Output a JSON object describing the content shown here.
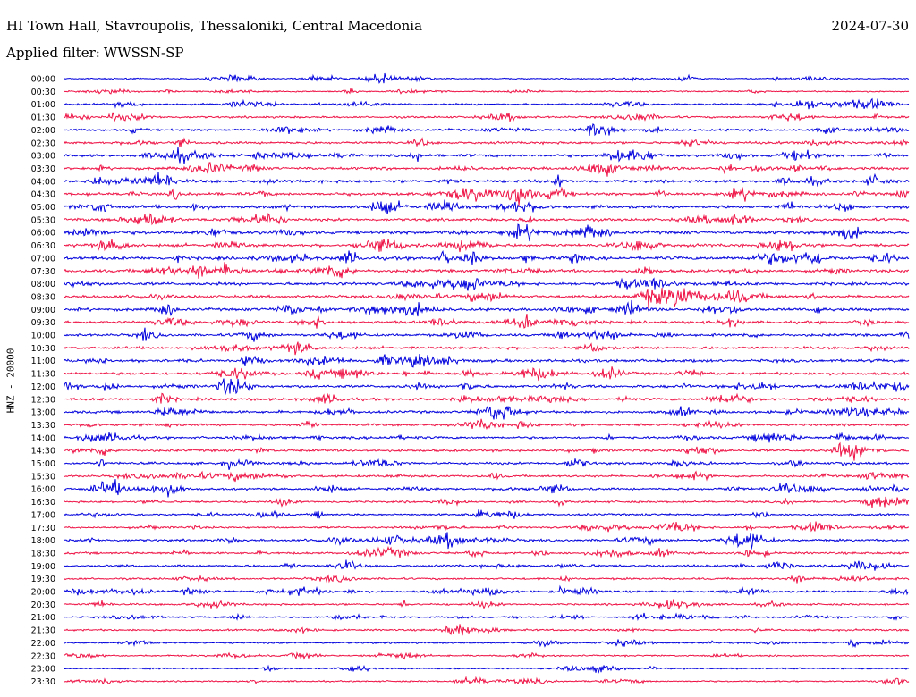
{
  "header": {
    "title": "HI Town Hall, Stavroupolis, Thessaloniki, Central Macedonia",
    "date": "2024-07-30",
    "filter_label": "Applied filter:",
    "filter_value": "WWSSN-SP"
  },
  "chart_data": {
    "type": "line",
    "subtype": "helicorder",
    "ylabel": "HNZ - 20000",
    "colors": [
      "#0000dd",
      "#ee1144"
    ],
    "trace_labels": [
      "00:00",
      "00:30",
      "01:00",
      "01:30",
      "02:00",
      "02:30",
      "03:00",
      "03:30",
      "04:00",
      "04:30",
      "05:00",
      "05:30",
      "06:00",
      "06:30",
      "07:00",
      "07:30",
      "08:00",
      "08:30",
      "09:00",
      "09:30",
      "10:00",
      "10:30",
      "11:00",
      "11:30",
      "12:00",
      "12:30",
      "13:00",
      "13:30",
      "14:00",
      "14:30",
      "15:00",
      "15:30",
      "16:00",
      "16:30",
      "17:00",
      "17:30",
      "18:00",
      "18:30",
      "19:00",
      "19:30",
      "20:00",
      "20:30",
      "21:00",
      "21:30",
      "22:00",
      "22:30",
      "23:00",
      "23:30"
    ],
    "trace_amplitude": [
      0.15,
      0.18,
      0.3,
      0.35,
      0.4,
      0.45,
      0.55,
      0.5,
      0.6,
      0.6,
      0.65,
      0.55,
      0.65,
      0.6,
      0.7,
      0.6,
      0.6,
      0.55,
      0.55,
      0.55,
      0.5,
      0.5,
      0.6,
      0.55,
      0.55,
      0.5,
      0.5,
      0.45,
      0.45,
      0.45,
      0.45,
      0.4,
      0.4,
      0.35,
      0.35,
      0.35,
      0.45,
      0.4,
      0.4,
      0.35,
      0.35,
      0.3,
      0.25,
      0.3,
      0.25,
      0.2,
      0.2,
      0.2
    ]
  }
}
